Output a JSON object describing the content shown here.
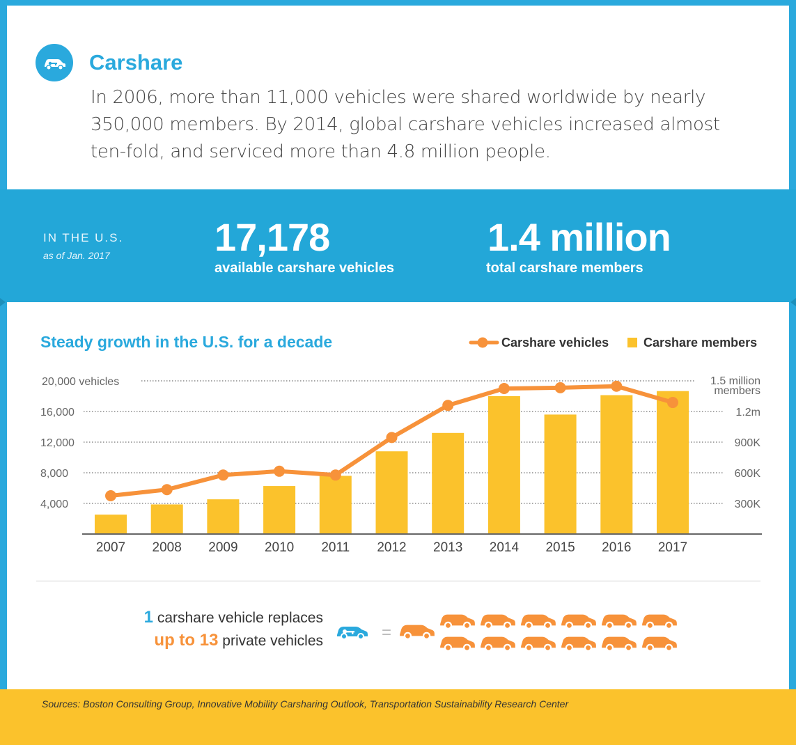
{
  "header": {
    "title": "Carshare",
    "intro": "In 2006, more than 11,000 vehicles were shared worldwide by nearly 350,000 members. By 2014, global carshare vehicles increased almost ten-fold, and serviced more than 4.8 million people."
  },
  "stats": {
    "label": "IN THE U.S.",
    "sublabel": "as of Jan. 2017",
    "vehicles_value": "17,178",
    "vehicles_caption": "available carshare vehicles",
    "members_value": "1.4 million",
    "members_caption": "total carshare members"
  },
  "chart_data": {
    "type": "bar",
    "title": "Steady growth in the U.S. for a decade",
    "categories": [
      "2007",
      "2008",
      "2009",
      "2010",
      "2011",
      "2012",
      "2013",
      "2014",
      "2015",
      "2016",
      "2017"
    ],
    "series": [
      {
        "name": "Carshare vehicles",
        "kind": "line",
        "axis": "left",
        "color": "#f7923a",
        "values": [
          5000,
          5800,
          7700,
          8200,
          7700,
          12600,
          16800,
          19000,
          19100,
          19300,
          17178
        ]
      },
      {
        "name": "Carshare members",
        "kind": "bar",
        "axis": "right",
        "color": "#fbc22c",
        "values": [
          190000,
          290000,
          340000,
          470000,
          570000,
          810000,
          990000,
          1350000,
          1170000,
          1360000,
          1400000
        ]
      }
    ],
    "y_left": {
      "ylim": [
        0,
        20000
      ],
      "ticks": [
        20000,
        16000,
        12000,
        8000,
        4000
      ],
      "tick_labels": [
        "20,000 vehicles",
        "16,000",
        "12,000",
        "8,000",
        "4,000"
      ]
    },
    "y_right": {
      "ylim": [
        0,
        1500000
      ],
      "ticks": [
        1500000,
        1200000,
        900000,
        600000,
        300000
      ],
      "tick_labels": [
        "1.5 million",
        "1.2m",
        "900K",
        "600K",
        "300K"
      ],
      "top_label_extra": "members"
    },
    "grid": "dotted",
    "legend": "top-right"
  },
  "replacement": {
    "line1_num": "1",
    "line1_text": "carshare vehicle replaces",
    "line2_num": "up to 13",
    "line2_text": "private vehicles",
    "equals": "=",
    "shared_icon": "car-key-icon",
    "private_icon": "car-icon",
    "private_count": 13,
    "colors": {
      "shared": "#2aa9dd",
      "private": "#f7923a"
    }
  },
  "sources": "Sources: Boston Consulting Group, Innovative Mobility Carsharing Outlook, Transportation Sustainability Research Center",
  "colors": {
    "blue": "#2aa9dd",
    "orange": "#f7923a",
    "yellow": "#fbc22c"
  }
}
